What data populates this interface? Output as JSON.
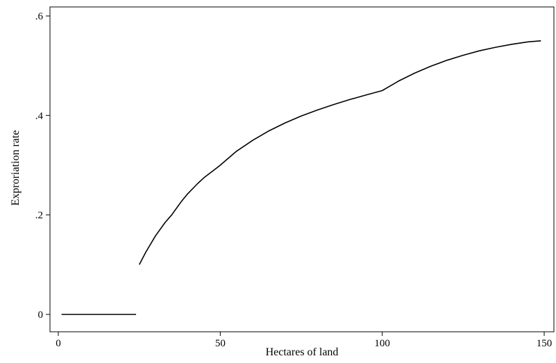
{
  "chart_data": {
    "type": "line",
    "title": "",
    "xlabel": "Hectares of land",
    "ylabel": "Exproriation rate",
    "xlim": [
      0,
      150
    ],
    "ylim": [
      0,
      0.6
    ],
    "grid": false,
    "legend": "none",
    "x_ticks": [
      {
        "value": 0,
        "label": "0"
      },
      {
        "value": 50,
        "label": "50"
      },
      {
        "value": 100,
        "label": "100"
      },
      {
        "value": 150,
        "label": "150"
      }
    ],
    "y_ticks": [
      {
        "value": 0,
        "label": "0"
      },
      {
        "value": 0.2,
        "label": ".2"
      },
      {
        "value": 0.4,
        "label": ".4"
      },
      {
        "value": 0.6,
        "label": ".6"
      }
    ],
    "series": [
      {
        "color": "#000000",
        "segments": [
          {
            "x": [
              1,
              24
            ],
            "y": [
              0,
              0
            ]
          },
          {
            "x": [
              25,
              27,
              30,
              33,
              35,
              38,
              40,
              43,
              45,
              48,
              50,
              55,
              60,
              65,
              70,
              75,
              80,
              85,
              90,
              95,
              100,
              105,
              110,
              115,
              120,
              125,
              130,
              135,
              140,
              145,
              149
            ],
            "y": [
              0.1,
              0.125,
              0.158,
              0.185,
              0.2,
              0.227,
              0.243,
              0.263,
              0.275,
              0.29,
              0.3,
              0.328,
              0.35,
              0.369,
              0.385,
              0.399,
              0.411,
              0.422,
              0.432,
              0.441,
              0.45,
              0.469,
              0.485,
              0.499,
              0.511,
              0.521,
              0.53,
              0.537,
              0.543,
              0.548,
              0.55
            ]
          }
        ]
      }
    ]
  }
}
